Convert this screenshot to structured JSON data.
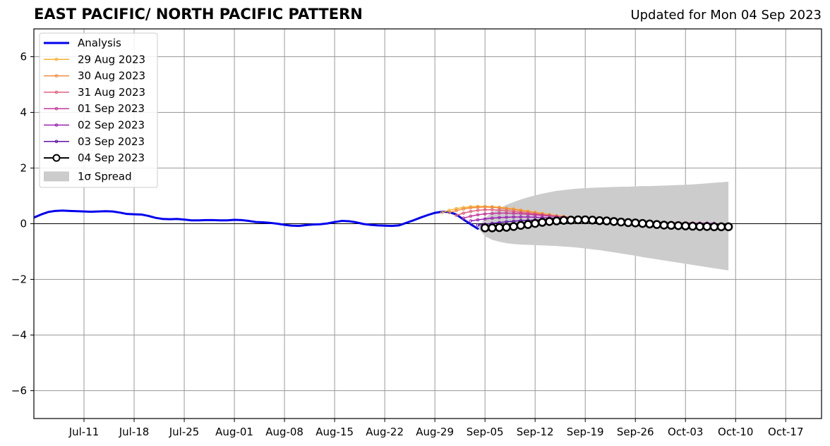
{
  "chart_data": {
    "type": "line",
    "title": "EAST PACIFIC/ NORTH PACIFIC PATTERN",
    "subtitle": "Updated for Mon 04 Sep 2023",
    "xlabel": "",
    "ylabel": "",
    "ylim": [
      -7,
      7
    ],
    "yticks": [
      -6,
      -4,
      -2,
      0,
      2,
      4,
      6
    ],
    "ytick_labels": [
      "−6",
      "−4",
      "−2",
      "0",
      "2",
      "4",
      "6"
    ],
    "xlim": [
      "2023-07-04",
      "2023-10-22"
    ],
    "xticks": [
      "2023-07-11",
      "2023-07-18",
      "2023-07-25",
      "2023-08-01",
      "2023-08-08",
      "2023-08-15",
      "2023-08-22",
      "2023-08-29",
      "2023-09-05",
      "2023-09-12",
      "2023-09-19",
      "2023-09-26",
      "2023-10-03",
      "2023-10-10",
      "2023-10-17"
    ],
    "xtick_labels": [
      "Jul-11",
      "Jul-18",
      "Jul-25",
      "Aug-01",
      "Aug-08",
      "Aug-15",
      "Aug-22",
      "Aug-29",
      "Sep-05",
      "Sep-12",
      "Sep-19",
      "Sep-26",
      "Oct-03",
      "Oct-10",
      "Oct-17"
    ],
    "grid": true,
    "legend_position": "upper-left",
    "colors": {
      "analysis": "#0000ee",
      "aug29": "#f7b032",
      "aug30": "#f38a3e",
      "aug31": "#e0607e",
      "sep01": "#c2389b",
      "sep02": "#9a1fb2",
      "sep03": "#5b12a3",
      "sep04": "#000000",
      "spread": "#cccccc"
    },
    "analysis": {
      "name": "Analysis",
      "points": [
        [
          "2023-07-04",
          0.22
        ],
        [
          "2023-07-05",
          0.33
        ],
        [
          "2023-07-06",
          0.42
        ],
        [
          "2023-07-07",
          0.46
        ],
        [
          "2023-07-08",
          0.47
        ],
        [
          "2023-07-09",
          0.46
        ],
        [
          "2023-07-10",
          0.45
        ],
        [
          "2023-07-11",
          0.44
        ],
        [
          "2023-07-12",
          0.43
        ],
        [
          "2023-07-13",
          0.44
        ],
        [
          "2023-07-14",
          0.45
        ],
        [
          "2023-07-15",
          0.44
        ],
        [
          "2023-07-16",
          0.4
        ],
        [
          "2023-07-17",
          0.35
        ],
        [
          "2023-07-18",
          0.34
        ],
        [
          "2023-07-19",
          0.33
        ],
        [
          "2023-07-20",
          0.28
        ],
        [
          "2023-07-21",
          0.21
        ],
        [
          "2023-07-22",
          0.17
        ],
        [
          "2023-07-23",
          0.16
        ],
        [
          "2023-07-24",
          0.17
        ],
        [
          "2023-07-25",
          0.15
        ],
        [
          "2023-07-26",
          0.12
        ],
        [
          "2023-07-27",
          0.12
        ],
        [
          "2023-07-28",
          0.13
        ],
        [
          "2023-07-29",
          0.13
        ],
        [
          "2023-07-30",
          0.12
        ],
        [
          "2023-07-31",
          0.12
        ],
        [
          "2023-08-01",
          0.14
        ],
        [
          "2023-08-02",
          0.13
        ],
        [
          "2023-08-03",
          0.1
        ],
        [
          "2023-08-04",
          0.06
        ],
        [
          "2023-08-05",
          0.05
        ],
        [
          "2023-08-06",
          0.03
        ],
        [
          "2023-08-07",
          0.0
        ],
        [
          "2023-08-08",
          -0.04
        ],
        [
          "2023-08-09",
          -0.07
        ],
        [
          "2023-08-10",
          -0.08
        ],
        [
          "2023-08-11",
          -0.05
        ],
        [
          "2023-08-12",
          -0.03
        ],
        [
          "2023-08-13",
          -0.02
        ],
        [
          "2023-08-14",
          0.01
        ],
        [
          "2023-08-15",
          0.06
        ],
        [
          "2023-08-16",
          0.1
        ],
        [
          "2023-08-17",
          0.09
        ],
        [
          "2023-08-18",
          0.05
        ],
        [
          "2023-08-19",
          -0.01
        ],
        [
          "2023-08-20",
          -0.04
        ],
        [
          "2023-08-21",
          -0.06
        ],
        [
          "2023-08-22",
          -0.07
        ],
        [
          "2023-08-23",
          -0.08
        ],
        [
          "2023-08-24",
          -0.06
        ],
        [
          "2023-08-25",
          0.03
        ],
        [
          "2023-08-26",
          0.12
        ],
        [
          "2023-08-27",
          0.22
        ],
        [
          "2023-08-28",
          0.31
        ],
        [
          "2023-08-29",
          0.39
        ],
        [
          "2023-08-30",
          0.43
        ],
        [
          "2023-08-31",
          0.42
        ],
        [
          "2023-09-01",
          0.33
        ],
        [
          "2023-09-02",
          0.15
        ],
        [
          "2023-09-03",
          -0.02
        ],
        [
          "2023-09-04",
          -0.18
        ]
      ]
    },
    "forecasts": [
      {
        "name": "29 Aug 2023",
        "color_key": "aug29",
        "start": "2023-08-30",
        "values": [
          0.4,
          0.48,
          0.54,
          0.58,
          0.61,
          0.62,
          0.62,
          0.61,
          0.59,
          0.56,
          0.53,
          0.49,
          0.45,
          0.41,
          0.37,
          0.33,
          0.29,
          0.26,
          0.23,
          0.2,
          0.17,
          0.15,
          0.13,
          0.11,
          0.09,
          0.08,
          0.07,
          0.06,
          0.05,
          0.05,
          0.04,
          0.04,
          0.03,
          0.03,
          0.03
        ]
      },
      {
        "name": "30 Aug 2023",
        "color_key": "aug30",
        "start": "2023-08-31",
        "values": [
          0.4,
          0.47,
          0.53,
          0.57,
          0.59,
          0.6,
          0.59,
          0.57,
          0.54,
          0.51,
          0.47,
          0.43,
          0.39,
          0.35,
          0.31,
          0.28,
          0.25,
          0.22,
          0.19,
          0.17,
          0.15,
          0.13,
          0.11,
          0.09,
          0.08,
          0.07,
          0.06,
          0.05,
          0.05,
          0.04,
          0.04,
          0.03,
          0.03,
          0.03,
          0.03
        ]
      },
      {
        "name": "31 Aug 2023",
        "color_key": "aug31",
        "start": "2023-09-01",
        "values": [
          0.3,
          0.38,
          0.44,
          0.48,
          0.5,
          0.5,
          0.49,
          0.47,
          0.44,
          0.41,
          0.38,
          0.35,
          0.32,
          0.29,
          0.26,
          0.23,
          0.21,
          0.18,
          0.16,
          0.14,
          0.12,
          0.1,
          0.09,
          0.08,
          0.07,
          0.06,
          0.05,
          0.04,
          0.04,
          0.03,
          0.03,
          0.02,
          0.02,
          0.02,
          0.02
        ]
      },
      {
        "name": "01 Sep 2023",
        "color_key": "sep01",
        "start": "2023-09-02",
        "values": [
          0.2,
          0.27,
          0.32,
          0.35,
          0.37,
          0.38,
          0.38,
          0.37,
          0.36,
          0.34,
          0.32,
          0.3,
          0.28,
          0.26,
          0.24,
          0.22,
          0.2,
          0.18,
          0.16,
          0.14,
          0.12,
          0.1,
          0.09,
          0.08,
          0.07,
          0.06,
          0.05,
          0.04,
          0.03,
          0.03,
          0.02,
          0.02,
          0.02,
          0.02,
          0.02
        ]
      },
      {
        "name": "02 Sep 2023",
        "color_key": "sep02",
        "start": "2023-09-03",
        "values": [
          0.1,
          0.14,
          0.17,
          0.2,
          0.22,
          0.23,
          0.24,
          0.24,
          0.24,
          0.23,
          0.22,
          0.21,
          0.2,
          0.19,
          0.18,
          0.16,
          0.15,
          0.13,
          0.12,
          0.1,
          0.09,
          0.08,
          0.07,
          0.06,
          0.05,
          0.04,
          0.03,
          0.03,
          0.02,
          0.02,
          0.02,
          0.01,
          0.01,
          0.01,
          0.01
        ]
      },
      {
        "name": "03 Sep 2023",
        "color_key": "sep03",
        "start": "2023-09-04",
        "values": [
          -0.05,
          -0.02,
          0.01,
          0.04,
          0.07,
          0.09,
          0.11,
          0.12,
          0.13,
          0.14,
          0.14,
          0.14,
          0.14,
          0.13,
          0.12,
          0.11,
          0.1,
          0.09,
          0.08,
          0.07,
          0.06,
          0.05,
          0.04,
          0.03,
          0.02,
          0.01,
          0.0,
          -0.01,
          -0.02,
          -0.03,
          -0.03,
          -0.04,
          -0.04,
          -0.05,
          -0.05
        ]
      },
      {
        "name": "04 Sep 2023",
        "color_key": "sep04",
        "start": "2023-09-05",
        "values": [
          -0.15,
          -0.15,
          -0.14,
          -0.13,
          -0.1,
          -0.06,
          -0.03,
          0.01,
          0.05,
          0.08,
          0.1,
          0.12,
          0.13,
          0.14,
          0.14,
          0.13,
          0.11,
          0.1,
          0.08,
          0.06,
          0.04,
          0.03,
          0.01,
          -0.01,
          -0.03,
          -0.05,
          -0.06,
          -0.07,
          -0.08,
          -0.09,
          -0.1,
          -0.1,
          -0.11,
          -0.11,
          -0.11
        ]
      }
    ],
    "spread": {
      "name": "1σ Spread",
      "start": "2023-09-04",
      "upper": [
        -0.15,
        0.2,
        0.4,
        0.55,
        0.68,
        0.78,
        0.87,
        0.95,
        1.02,
        1.08,
        1.13,
        1.18,
        1.21,
        1.24,
        1.26,
        1.28,
        1.29,
        1.3,
        1.31,
        1.32,
        1.33,
        1.33,
        1.34,
        1.35,
        1.35,
        1.36,
        1.37,
        1.38,
        1.39,
        1.4,
        1.41,
        1.43,
        1.45,
        1.47,
        1.49,
        1.51
      ],
      "lower": [
        -0.15,
        -0.45,
        -0.58,
        -0.65,
        -0.7,
        -0.73,
        -0.75,
        -0.76,
        -0.77,
        -0.78,
        -0.79,
        -0.8,
        -0.82,
        -0.84,
        -0.86,
        -0.89,
        -0.92,
        -0.95,
        -0.99,
        -1.03,
        -1.07,
        -1.11,
        -1.15,
        -1.2,
        -1.24,
        -1.28,
        -1.32,
        -1.36,
        -1.4,
        -1.44,
        -1.48,
        -1.52,
        -1.56,
        -1.6,
        -1.64,
        -1.68
      ]
    }
  }
}
